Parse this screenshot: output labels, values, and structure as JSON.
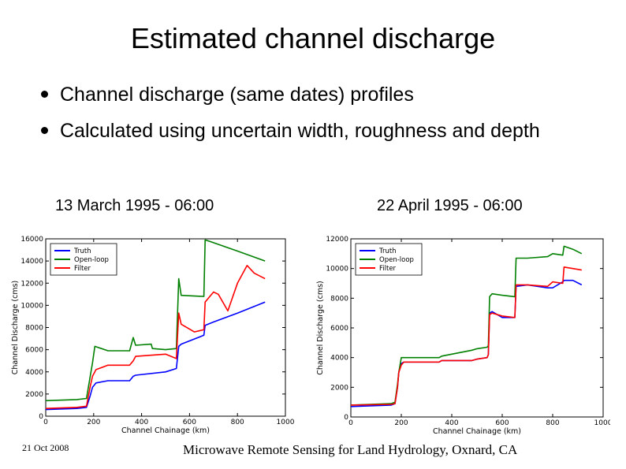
{
  "slide": {
    "title": "Estimated channel discharge",
    "bullets": [
      "Channel discharge (same dates) profiles",
      "Calculated using uncertain width, roughness and depth"
    ],
    "footer_date": "21 Oct 2008",
    "footer_event": "Microwave Remote Sensing for Land Hydrology, Oxnard, CA"
  },
  "colors": {
    "truth": "#0000ff",
    "openloop": "#008000",
    "filter": "#ff0000"
  },
  "chart_data": [
    {
      "type": "line",
      "title": "13 March 1995 - 06:00",
      "xlabel": "Channel Chainage (km)",
      "ylabel": "Channel Discharge (cms)",
      "xlim": [
        0,
        1000
      ],
      "ylim": [
        0,
        16000
      ],
      "xticks": [
        0,
        200,
        400,
        600,
        800,
        1000
      ],
      "yticks": [
        0,
        2000,
        4000,
        6000,
        8000,
        10000,
        12000,
        14000,
        16000
      ],
      "legend": [
        "Truth",
        "Open-loop",
        "Filter"
      ],
      "series": [
        {
          "name": "Truth",
          "x": [
            0,
            130,
            170,
            185,
            195,
            210,
            260,
            350,
            365,
            375,
            500,
            545,
            555,
            565,
            660,
            665,
            700,
            800,
            915
          ],
          "y": [
            600,
            700,
            800,
            1800,
            2600,
            3000,
            3200,
            3200,
            3600,
            3700,
            4000,
            4300,
            6300,
            6500,
            7300,
            8200,
            8500,
            9300,
            10300
          ]
        },
        {
          "name": "Open-loop",
          "x": [
            0,
            130,
            170,
            185,
            195,
            205,
            260,
            350,
            365,
            375,
            440,
            445,
            500,
            545,
            555,
            565,
            660,
            665,
            680,
            800,
            915
          ],
          "y": [
            1400,
            1500,
            1600,
            3500,
            4800,
            6300,
            5900,
            5900,
            7100,
            6400,
            6500,
            6100,
            6000,
            6100,
            12400,
            10900,
            10800,
            15900,
            15800,
            14900,
            14000
          ]
        },
        {
          "name": "Filter",
          "x": [
            0,
            130,
            170,
            185,
            195,
            210,
            260,
            350,
            365,
            375,
            500,
            545,
            555,
            565,
            620,
            660,
            665,
            700,
            720,
            760,
            800,
            840,
            870,
            915
          ],
          "y": [
            700,
            800,
            900,
            2600,
            3600,
            4200,
            4600,
            4600,
            5000,
            5400,
            5600,
            5200,
            9300,
            8300,
            7600,
            7800,
            10300,
            11200,
            11000,
            9500,
            12000,
            13600,
            12900,
            12400
          ]
        }
      ]
    },
    {
      "type": "line",
      "title": "22 April 1995 - 06:00",
      "xlabel": "Channel Chainage (km)",
      "ylabel": "Channel Discharge (cms)",
      "xlim": [
        0,
        1000
      ],
      "ylim": [
        0,
        12000
      ],
      "xticks": [
        0,
        200,
        400,
        600,
        800,
        1000
      ],
      "yticks": [
        0,
        2000,
        4000,
        6000,
        8000,
        10000,
        12000
      ],
      "legend": [
        "Truth",
        "Open-loop",
        "Filter"
      ],
      "series": [
        {
          "name": "Truth",
          "x": [
            0,
            160,
            175,
            185,
            190,
            200,
            210,
            350,
            360,
            480,
            500,
            540,
            545,
            550,
            560,
            600,
            650,
            655,
            700,
            780,
            800,
            840,
            845,
            880,
            915
          ],
          "y": [
            700,
            800,
            900,
            2000,
            3000,
            3600,
            3700,
            3700,
            3800,
            3800,
            3900,
            4000,
            4200,
            7000,
            7100,
            6700,
            6700,
            8800,
            8900,
            8700,
            8700,
            9100,
            9200,
            9200,
            8900
          ]
        },
        {
          "name": "Open-loop",
          "x": [
            0,
            160,
            175,
            185,
            190,
            200,
            210,
            350,
            360,
            480,
            500,
            540,
            545,
            550,
            560,
            600,
            650,
            655,
            700,
            780,
            800,
            840,
            845,
            880,
            915
          ],
          "y": [
            800,
            900,
            1000,
            2200,
            3000,
            4000,
            4000,
            4000,
            4100,
            4500,
            4600,
            4700,
            4800,
            8100,
            8300,
            8200,
            8100,
            10700,
            10700,
            10800,
            11000,
            10900,
            11500,
            11300,
            11000
          ]
        },
        {
          "name": "Filter",
          "x": [
            0,
            160,
            175,
            185,
            190,
            200,
            210,
            350,
            360,
            480,
            500,
            540,
            545,
            550,
            560,
            600,
            650,
            655,
            700,
            780,
            800,
            840,
            845,
            880,
            915
          ],
          "y": [
            800,
            850,
            900,
            2000,
            3000,
            3500,
            3700,
            3700,
            3800,
            3800,
            3900,
            4000,
            4200,
            6900,
            7000,
            6800,
            6700,
            8900,
            8900,
            8800,
            9100,
            9000,
            10100,
            10000,
            9900
          ]
        }
      ]
    }
  ]
}
